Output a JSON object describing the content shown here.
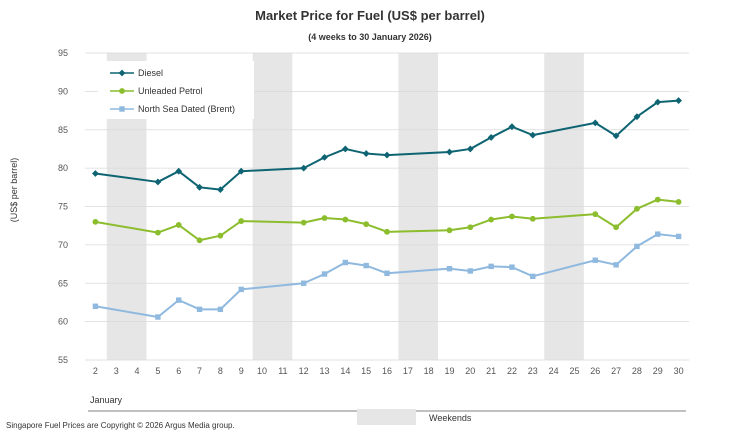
{
  "chart_data": {
    "type": "line",
    "title": "Market Price for Fuel (US$ per barrel)",
    "subtitle": "(4 weeks to 30 January 2026)",
    "xlabel": "January",
    "ylabel": "(US$ per barrel)",
    "ylim": [
      55,
      95
    ],
    "yticks": [
      55,
      60,
      65,
      70,
      75,
      80,
      85,
      90,
      95
    ],
    "xrange": [
      2,
      30
    ],
    "xticks": [
      2,
      3,
      4,
      5,
      6,
      7,
      8,
      9,
      10,
      11,
      12,
      13,
      14,
      15,
      16,
      17,
      18,
      19,
      20,
      21,
      22,
      23,
      24,
      25,
      26,
      27,
      28,
      29,
      30
    ],
    "weekends": [
      [
        3,
        4
      ],
      [
        10,
        11
      ],
      [
        17,
        18
      ],
      [
        24,
        25
      ]
    ],
    "legend_position": "top-left",
    "series": [
      {
        "name": "Diesel",
        "color": "#0e6472",
        "marker": "diamond",
        "x": [
          2,
          5,
          6,
          7,
          8,
          9,
          12,
          13,
          14,
          15,
          16,
          19,
          20,
          21,
          22,
          23,
          26,
          27,
          28,
          29,
          30
        ],
        "values": [
          79.3,
          78.2,
          79.6,
          77.5,
          77.2,
          79.6,
          80.0,
          81.4,
          82.5,
          81.9,
          81.7,
          82.1,
          82.5,
          84.0,
          85.4,
          84.3,
          85.9,
          84.2,
          86.7,
          88.6,
          88.8
        ]
      },
      {
        "name": "Unleaded Petrol",
        "color": "#8cbd2d",
        "marker": "circle",
        "x": [
          2,
          5,
          6,
          7,
          8,
          9,
          12,
          13,
          14,
          15,
          16,
          19,
          20,
          21,
          22,
          23,
          26,
          27,
          28,
          29,
          30
        ],
        "values": [
          73.0,
          71.6,
          72.6,
          70.6,
          71.2,
          73.1,
          72.9,
          73.5,
          73.3,
          72.7,
          71.7,
          71.9,
          72.3,
          73.3,
          73.7,
          73.4,
          74.0,
          72.3,
          74.7,
          75.9,
          75.6
        ]
      },
      {
        "name": "North Sea Dated (Brent)",
        "color": "#8fb9de",
        "marker": "square",
        "x": [
          2,
          5,
          6,
          7,
          8,
          9,
          12,
          13,
          14,
          15,
          16,
          19,
          20,
          21,
          22,
          23,
          26,
          27,
          28,
          29,
          30
        ],
        "values": [
          62.0,
          60.6,
          62.8,
          61.6,
          61.6,
          64.2,
          65.0,
          66.2,
          67.7,
          67.3,
          66.3,
          66.9,
          66.6,
          67.2,
          67.1,
          65.9,
          68.0,
          67.4,
          69.8,
          71.4,
          71.1
        ]
      }
    ],
    "weekend_legend_label": "Weekends",
    "footer": "Singapore  Fuel Prices  are Copyright  © 2026  Argus  Media group."
  },
  "colors": {
    "weekend_shade": "#e6e6e6",
    "gridline": "#d9d9d9",
    "axis": "#595959"
  }
}
